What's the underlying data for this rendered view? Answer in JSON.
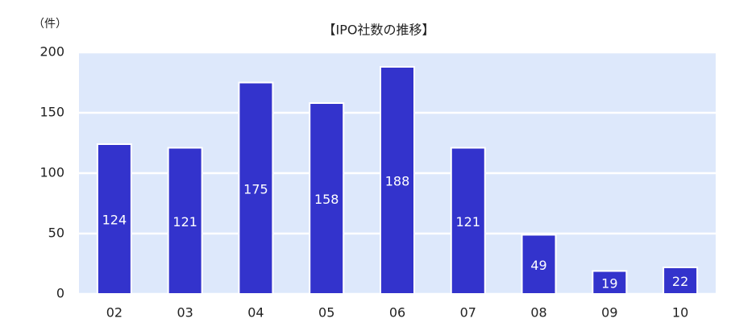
{
  "chart_data": {
    "type": "bar",
    "title": "【IPO社数の推移】",
    "y_label": "（件）",
    "categories": [
      "02",
      "03",
      "04",
      "05",
      "06",
      "07",
      "08",
      "09",
      "10"
    ],
    "values": [
      124,
      121,
      175,
      158,
      188,
      121,
      49,
      19,
      22
    ],
    "color": "#3333cc",
    "background": "#dde8fb",
    "ylim": [
      0,
      200
    ],
    "yticks": [
      0,
      50,
      100,
      150,
      200
    ],
    "grid": true
  }
}
